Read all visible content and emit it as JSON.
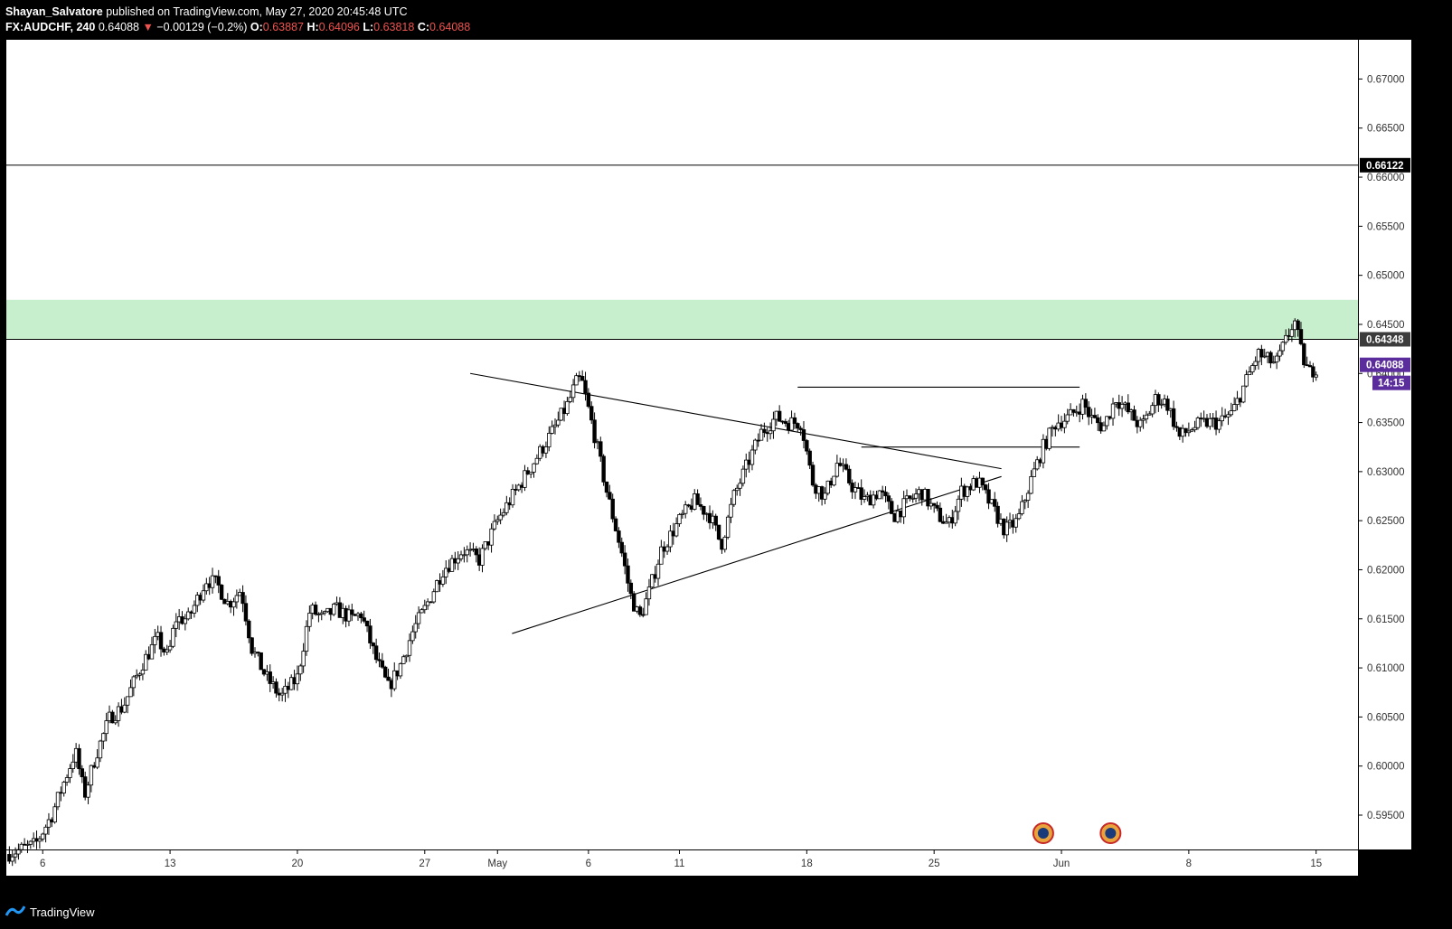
{
  "header": {
    "author": "Shayan_Salvatore",
    "published_text": "published on TradingView.com, May 27, 2020 20:45:48 UTC",
    "symbol": "FX:AUDCHF, 240",
    "last_price": "0.64088",
    "change_arrow": "▼",
    "change": "−0.00129 (−0.2%)",
    "o_label": "O:",
    "o_value": "0.63887",
    "h_label": "H:",
    "h_value": "0.64096",
    "l_label": "L:",
    "l_value": "0.63818",
    "c_label": "C:",
    "c_value": "0.64088"
  },
  "footer": {
    "brand": "TradingView"
  },
  "colors": {
    "up": "#ffffff",
    "down": "#000000",
    "zone": "#c8efcd",
    "current": "#5b2c9c",
    "line": "#000000"
  },
  "chart_data": {
    "type": "candlestick",
    "y_range": [
      0.5915,
      0.674
    ],
    "y_ticks": [
      "0.67000",
      "0.66500",
      "0.66000",
      "0.65500",
      "0.65000",
      "0.64500",
      "0.64000",
      "0.63500",
      "0.63000",
      "0.62500",
      "0.62000",
      "0.61500",
      "0.61000",
      "0.60500",
      "0.60000",
      "0.59500"
    ],
    "y_tick_values": [
      0.67,
      0.665,
      0.66,
      0.655,
      0.65,
      0.645,
      0.64,
      0.635,
      0.63,
      0.625,
      0.62,
      0.615,
      0.61,
      0.605,
      0.6,
      0.595
    ],
    "x_tick_labels": [
      "6",
      "13",
      "20",
      "27",
      "May",
      "6",
      "11",
      "18",
      "25",
      "Jun",
      "8",
      "15"
    ],
    "x_tick_days": [
      6,
      13,
      20,
      27,
      31,
      36,
      41,
      48,
      55,
      62,
      69,
      76
    ],
    "x_start_day": 4,
    "x_end_day": 78.3,
    "price_tags": [
      {
        "value": 0.66122,
        "label": "0.66122",
        "color": "#000000"
      },
      {
        "value": 0.64348,
        "label": "0.64348",
        "color": "#3c3c3c"
      },
      {
        "value": 0.64088,
        "label": "0.64088",
        "color": "#5b2c9c"
      }
    ],
    "countdown": "14:15",
    "resistance_zone": [
      0.6435,
      0.6475
    ],
    "horizontal_lines": [
      0.66122,
      0.64348
    ],
    "trendlines": [
      {
        "from": [
          29.5,
          0.64
        ],
        "to": [
          58.7,
          0.6303
        ]
      },
      {
        "from": [
          31.8,
          0.6135
        ],
        "to": [
          58.7,
          0.6295
        ]
      },
      {
        "from": [
          47.5,
          0.6386
        ],
        "to": [
          63.0,
          0.6386
        ]
      },
      {
        "from": [
          51.0,
          0.6325
        ],
        "to": [
          63.0,
          0.6325
        ]
      }
    ],
    "pivots": [
      [
        4.0,
        0.591
      ],
      [
        5.6,
        0.592
      ],
      [
        6.5,
        0.595
      ],
      [
        7.8,
        0.6015
      ],
      [
        8.3,
        0.597
      ],
      [
        8.9,
        0.601
      ],
      [
        9.7,
        0.605
      ],
      [
        10.4,
        0.606
      ],
      [
        11.5,
        0.6105
      ],
      [
        12.3,
        0.613
      ],
      [
        12.9,
        0.611
      ],
      [
        13.3,
        0.615
      ],
      [
        14.0,
        0.615
      ],
      [
        15.0,
        0.619
      ],
      [
        15.6,
        0.6185
      ],
      [
        16.2,
        0.6165
      ],
      [
        16.9,
        0.618
      ],
      [
        17.5,
        0.612
      ],
      [
        18.3,
        0.609
      ],
      [
        19.1,
        0.607
      ],
      [
        20.0,
        0.609
      ],
      [
        20.7,
        0.616
      ],
      [
        21.4,
        0.615
      ],
      [
        22.1,
        0.616
      ],
      [
        23.0,
        0.615
      ],
      [
        23.5,
        0.6155
      ],
      [
        24.3,
        0.611
      ],
      [
        25.0,
        0.608
      ],
      [
        25.6,
        0.61
      ],
      [
        26.4,
        0.614
      ],
      [
        27.0,
        0.616
      ],
      [
        28.0,
        0.62
      ],
      [
        29.1,
        0.622
      ],
      [
        30.0,
        0.621
      ],
      [
        31.0,
        0.625
      ],
      [
        32.0,
        0.628
      ],
      [
        33.0,
        0.631
      ],
      [
        34.0,
        0.634
      ],
      [
        34.9,
        0.637
      ],
      [
        35.3,
        0.639
      ],
      [
        35.6,
        0.6395
      ],
      [
        36.3,
        0.634
      ],
      [
        37.0,
        0.628
      ],
      [
        37.8,
        0.622
      ],
      [
        38.3,
        0.6175
      ],
      [
        38.8,
        0.615
      ],
      [
        39.3,
        0.6175
      ],
      [
        40.0,
        0.622
      ],
      [
        41.0,
        0.625
      ],
      [
        41.8,
        0.627
      ],
      [
        42.7,
        0.6255
      ],
      [
        43.3,
        0.6225
      ],
      [
        44.0,
        0.6275
      ],
      [
        44.8,
        0.631
      ],
      [
        45.5,
        0.634
      ],
      [
        46.3,
        0.6355
      ],
      [
        47.0,
        0.635
      ],
      [
        47.7,
        0.635
      ],
      [
        48.3,
        0.629
      ],
      [
        49.0,
        0.6275
      ],
      [
        49.7,
        0.631
      ],
      [
        50.5,
        0.6285
      ],
      [
        51.2,
        0.627
      ],
      [
        52.0,
        0.628
      ],
      [
        52.8,
        0.6255
      ],
      [
        53.6,
        0.627
      ],
      [
        54.3,
        0.628
      ],
      [
        55.0,
        0.626
      ],
      [
        55.8,
        0.6245
      ],
      [
        56.5,
        0.628
      ],
      [
        57.4,
        0.629
      ],
      [
        58.0,
        0.627
      ],
      [
        58.9,
        0.624
      ],
      [
        59.6,
        0.625
      ],
      [
        60.3,
        0.629
      ],
      [
        61.0,
        0.6325
      ],
      [
        61.7,
        0.635
      ],
      [
        62.4,
        0.6355
      ],
      [
        63.2,
        0.637
      ],
      [
        63.6,
        0.6355
      ],
      [
        64.3,
        0.6345
      ],
      [
        65.0,
        0.6375
      ],
      [
        65.7,
        0.636
      ],
      [
        66.4,
        0.6345
      ],
      [
        67.2,
        0.6375
      ],
      [
        67.8,
        0.637
      ],
      [
        68.5,
        0.6335
      ],
      [
        69.2,
        0.6345
      ],
      [
        70.0,
        0.635
      ],
      [
        70.7,
        0.635
      ],
      [
        71.4,
        0.636
      ],
      [
        72.1,
        0.639
      ],
      [
        72.8,
        0.642
      ],
      [
        73.2,
        0.6415
      ],
      [
        73.8,
        0.641
      ],
      [
        74.5,
        0.644
      ],
      [
        74.8,
        0.6455
      ],
      [
        75.2,
        0.642
      ],
      [
        75.6,
        0.64
      ],
      [
        76.1,
        0.6408
      ]
    ]
  }
}
